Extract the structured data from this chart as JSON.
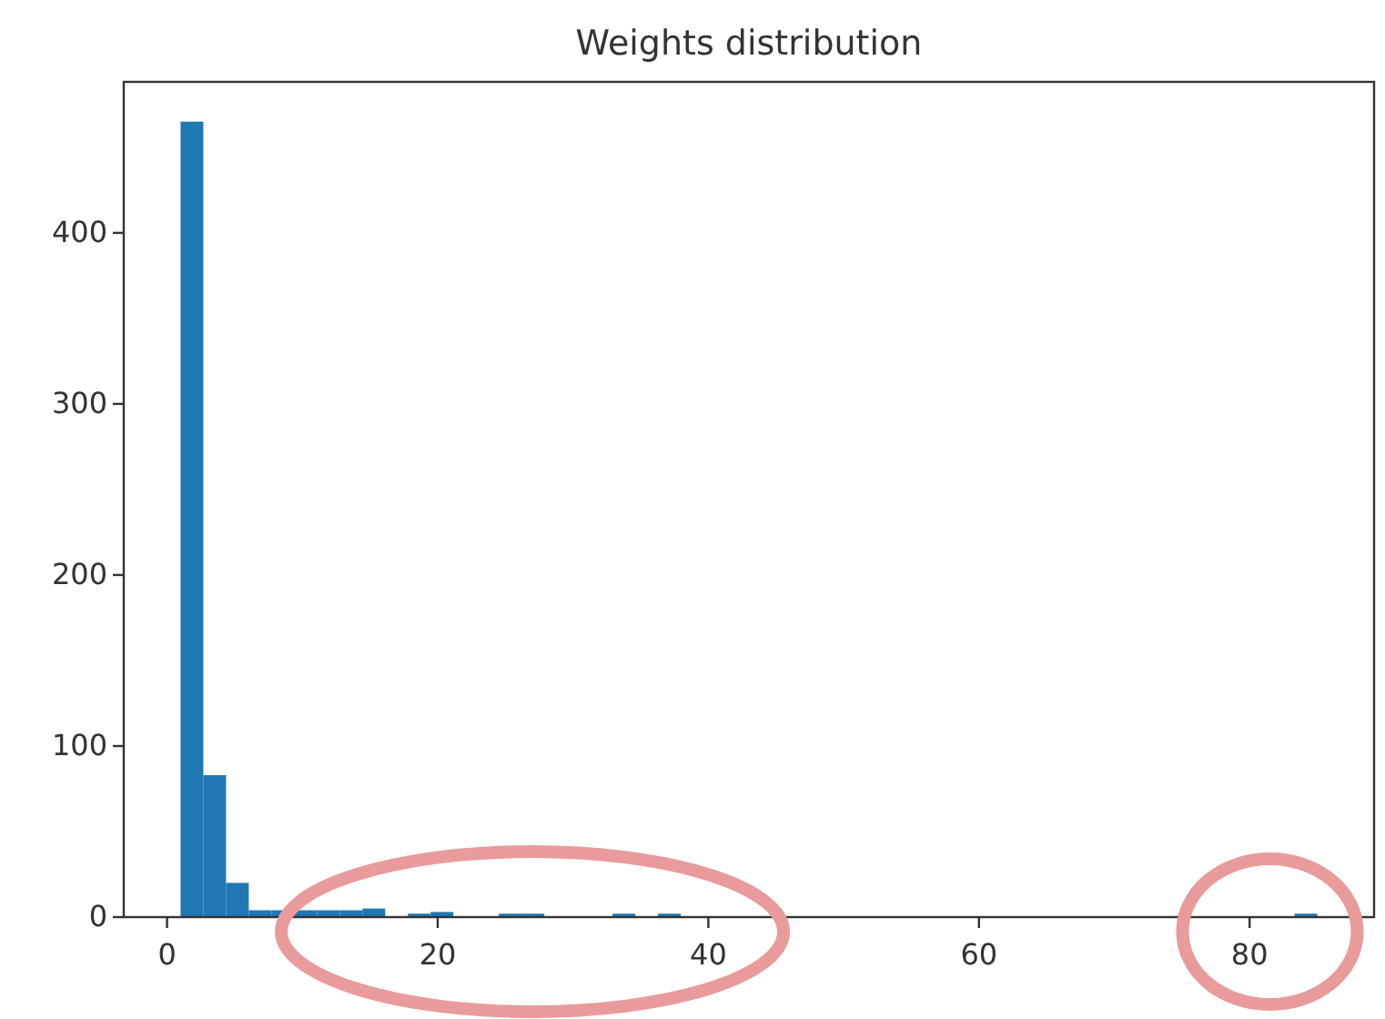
{
  "chart_data": {
    "type": "histogram",
    "title": "Weights distribution",
    "bins": [
      1,
      2.68,
      4.36,
      6.04,
      7.72,
      9.4,
      11.08,
      12.76,
      14.44,
      16.12,
      17.8,
      19.48,
      21.16,
      22.84,
      24.52,
      26.2,
      27.88,
      29.56,
      31.24,
      32.92,
      34.6,
      36.28,
      37.96,
      39.64,
      41.32,
      43,
      44.68,
      46.36,
      48.04,
      49.72,
      51.4,
      53.08,
      54.76,
      56.44,
      58.12,
      59.8,
      61.48,
      63.16,
      64.84,
      66.52,
      68.2,
      69.88,
      71.56,
      73.24,
      74.92,
      76.6,
      78.28,
      79.96,
      81.64,
      83.32,
      85
    ],
    "values": [
      465,
      83,
      20,
      4,
      4,
      4,
      4,
      4,
      5,
      0,
      2,
      3,
      0,
      0,
      2,
      2,
      0,
      0,
      0,
      2,
      0,
      2,
      0,
      0,
      0,
      0,
      0,
      0,
      0,
      0,
      0,
      0,
      0,
      0,
      0,
      0,
      0,
      0,
      0,
      0,
      0,
      0,
      0,
      0,
      0,
      0,
      0,
      0,
      0,
      2
    ],
    "color": "#1f77b4",
    "xlim": [
      -3.2,
      89.2
    ],
    "ylim": [
      0,
      488.25
    ],
    "xticks": [
      0,
      20,
      40,
      60,
      80
    ],
    "yticks": [
      0,
      100,
      200,
      300,
      400
    ],
    "grid": false
  }
}
